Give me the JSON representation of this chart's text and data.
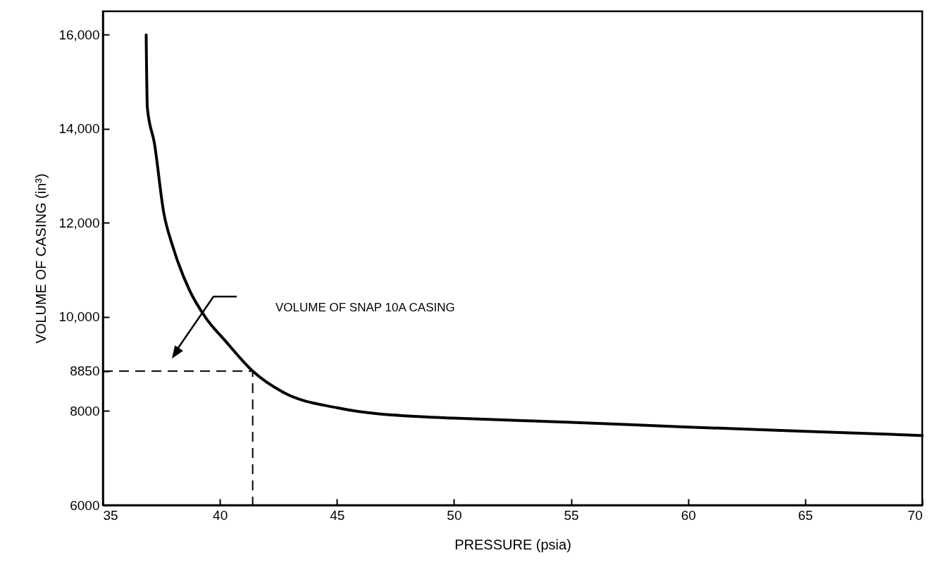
{
  "chart_data": {
    "type": "line",
    "xlabel": "PRESSURE  (psia)",
    "ylabel": "VOLUME OF CASING (in³)",
    "xlim": [
      35,
      70
    ],
    "xticks": [
      35,
      40,
      45,
      50,
      55,
      60,
      65,
      70
    ],
    "ylim": [
      6000,
      16500
    ],
    "yticks": [
      {
        "value": 6000,
        "label": "6000"
      },
      {
        "value": 8000,
        "label": "8000"
      },
      {
        "value": 8850,
        "label": "8850"
      },
      {
        "value": 10000,
        "label": "10,000"
      },
      {
        "value": 12000,
        "label": "12,000"
      },
      {
        "value": 14000,
        "label": "14,000"
      },
      {
        "value": 16000,
        "label": "16,000"
      }
    ],
    "series": [
      {
        "color": "#000000",
        "x": [
          36.85,
          36.9,
          37.2,
          37.6,
          38.0,
          38.7,
          39.4,
          40.2,
          41.4,
          42.7,
          45.0,
          48.6,
          50,
          55,
          60,
          65,
          70
        ],
        "values": [
          16000,
          14450,
          13700,
          12220,
          11480,
          10570,
          9980,
          9510,
          8850,
          8400,
          8070,
          7880,
          7850,
          7760,
          7660,
          7570,
          7480
        ]
      },
      {
        "color": "#000000",
        "line_style": "dashed",
        "x": [
          35,
          41.4,
          41.4
        ],
        "values": [
          8850,
          8850,
          6000
        ]
      }
    ],
    "annotations": [
      "VOLUME OF SNAP 10A CASING"
    ]
  }
}
